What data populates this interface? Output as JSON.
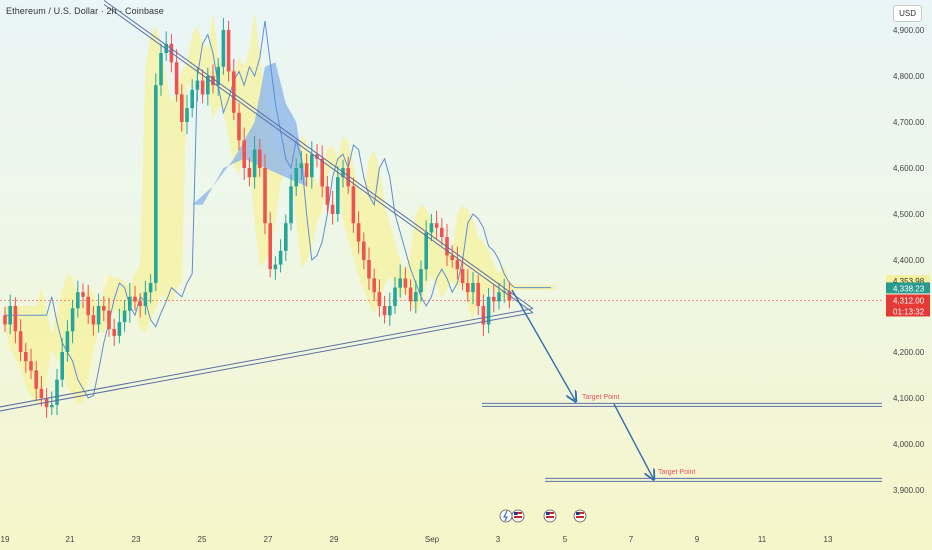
{
  "header": {
    "title": "Ethereum / U.S. Dollar · 2h · Coinbase",
    "currency": "USD"
  },
  "colors": {
    "up": "#26a69a",
    "down": "#ef5350",
    "trendline": "#5b6fa8",
    "arrow": "#2f6fb0",
    "cloud_yellow": "#f6f29e",
    "cloud_blue": "#8fb6ea"
  },
  "chart_data": {
    "type": "candlestick",
    "title": "Ethereum / U.S. Dollar · 2h · Coinbase",
    "ylim": [
      3870,
      4960
    ],
    "y_ticks": [
      "4,900.00",
      "4,800.00",
      "4,700.00",
      "4,600.00",
      "4,500.00",
      "4,400.00",
      "4,300.00",
      "4,200.00",
      "4,100.00",
      "4,000.00",
      "3,900.00"
    ],
    "x_ticks": [
      "19",
      "21",
      "23",
      "25",
      "27",
      "29",
      "Sep",
      "3",
      "5",
      "7",
      "9",
      "11",
      "13"
    ],
    "price_labels": [
      {
        "text": "4,353.98",
        "value": 4353.98,
        "style": "yellow"
      },
      {
        "text": "4,338.23",
        "value": 4338.23,
        "style": "teal"
      },
      {
        "text": "4,312.00",
        "value": 4312.0,
        "style": "red"
      },
      {
        "text": "01:13:32",
        "style": "red"
      }
    ],
    "annotations": [
      {
        "type": "horizontal_line",
        "value": 4085,
        "label": "Target Point"
      },
      {
        "type": "horizontal_line",
        "value": 3922,
        "label": "Target Point"
      }
    ],
    "trendlines": [
      {
        "from": [
          "Aug 18",
          4065
        ],
        "to": [
          "Sep 4",
          4290
        ]
      },
      {
        "from": [
          "Aug 22",
          4960
        ],
        "to": [
          "Sep 4",
          4290
        ]
      }
    ],
    "arrows": [
      {
        "from": [
          "Sep 3",
          4300
        ],
        "to": [
          "Sep 5",
          4085
        ]
      },
      {
        "from": [
          "Sep 6",
          4080
        ],
        "to": [
          "Sep 8",
          3922
        ]
      }
    ],
    "event_icons": [
      "lightning-flag-icon",
      "us-flag-icon",
      "us-flag-icon",
      "us-flag-icon"
    ],
    "close": [
      4260,
      4300,
      4245,
      4200,
      4180,
      4160,
      4120,
      4100,
      4080,
      4085,
      4140,
      4200,
      4245,
      4295,
      4330,
      4320,
      4280,
      4260,
      4300,
      4290,
      4250,
      4235,
      4265,
      4290,
      4320,
      4310,
      4300,
      4330,
      4350,
      4780,
      4850,
      4870,
      4830,
      4760,
      4700,
      4730,
      4770,
      4790,
      4760,
      4800,
      4780,
      4820,
      4900,
      4810,
      4720,
      4660,
      4600,
      4580,
      4640,
      4600,
      4480,
      4380,
      4390,
      4420,
      4480,
      4560,
      4600,
      4610,
      4580,
      4630,
      4620,
      4560,
      4520,
      4500,
      4580,
      4600,
      4560,
      4480,
      4440,
      4400,
      4360,
      4330,
      4300,
      4280,
      4300,
      4340,
      4360,
      4340,
      4310,
      4330,
      4380,
      4460,
      4480,
      4470,
      4450,
      4410,
      4400,
      4380,
      4350,
      4330,
      4350,
      4300,
      4260,
      4320,
      4310,
      4330,
      4332,
      4312
    ]
  }
}
